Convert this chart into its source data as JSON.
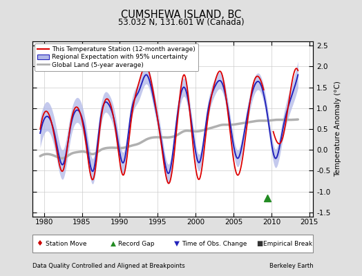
{
  "title": "CUMSHEWA ISLAND, BC",
  "subtitle": "53.032 N, 131.601 W (Canada)",
  "ylabel": "Temperature Anomaly (°C)",
  "xlabel_left": "Data Quality Controlled and Aligned at Breakpoints",
  "xlabel_right": "Berkeley Earth",
  "xlim": [
    1978.5,
    2015.5
  ],
  "ylim": [
    -1.6,
    2.6
  ],
  "yticks": [
    -1.5,
    -1.0,
    -0.5,
    0.0,
    0.5,
    1.0,
    1.5,
    2.0,
    2.5
  ],
  "xticks": [
    1980,
    1985,
    1990,
    1995,
    2000,
    2005,
    2010,
    2015
  ],
  "bg_color": "#e0e0e0",
  "plot_bg_color": "#ffffff",
  "grid_color": "#cccccc",
  "station_color": "#dd0000",
  "regional_color": "#2222bb",
  "regional_uncertainty_color": "#b0b8e8",
  "global_color": "#b0b0b0",
  "legend_station_move_color": "#cc0000",
  "legend_record_gap_color": "#228B22",
  "legend_obs_change_color": "#2222bb",
  "legend_empirical_break_color": "#333333",
  "record_gap_x": 2009.5,
  "record_gap_y": -1.15
}
